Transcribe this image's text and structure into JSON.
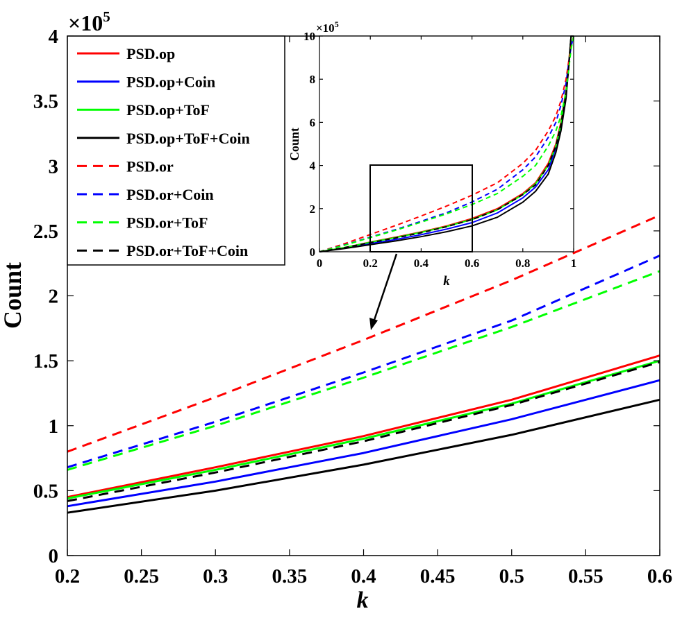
{
  "chart_data": [
    {
      "type": "line",
      "name": "main",
      "title": "",
      "xlabel": "k",
      "ylabel": "Count",
      "y_multiplier_label": "×10^5",
      "y_multiplier": {
        "base": "×10",
        "exp": "5"
      },
      "xlim": [
        0.2,
        0.6
      ],
      "ylim": [
        0,
        4
      ],
      "xticks": [
        0.2,
        0.25,
        0.3,
        0.35,
        0.4,
        0.45,
        0.5,
        0.55,
        0.6
      ],
      "xtick_labels": [
        "0.2",
        "0.25",
        "0.3",
        "0.35",
        "0.4",
        "0.45",
        "0.5",
        "0.55",
        "0.6"
      ],
      "yticks": [
        0,
        0.5,
        1,
        1.5,
        2,
        2.5,
        3,
        3.5,
        4
      ],
      "ytick_labels": [
        "0",
        "0.5",
        "1",
        "1.5",
        "2",
        "2.5",
        "3",
        "3.5",
        "4"
      ],
      "grid": false,
      "legend_position": "top-left",
      "x": [
        0.2,
        0.3,
        0.4,
        0.5,
        0.6
      ],
      "series": [
        {
          "name": "PSD.op",
          "color": "#ff0000",
          "style": "solid",
          "values": [
            0.45,
            0.68,
            0.92,
            1.2,
            1.54
          ]
        },
        {
          "name": "PSD.op+Coin",
          "color": "#0000ff",
          "style": "solid",
          "values": [
            0.38,
            0.57,
            0.79,
            1.05,
            1.35
          ]
        },
        {
          "name": "PSD.op+ToF",
          "color": "#00ff00",
          "style": "solid",
          "values": [
            0.44,
            0.66,
            0.9,
            1.17,
            1.5
          ]
        },
        {
          "name": "PSD.op+ToF+Coin",
          "color": "#000000",
          "style": "solid",
          "values": [
            0.33,
            0.5,
            0.7,
            0.93,
            1.2
          ]
        },
        {
          "name": "PSD.or",
          "color": "#ff0000",
          "style": "dashed",
          "values": [
            0.8,
            1.22,
            1.66,
            2.12,
            2.62
          ]
        },
        {
          "name": "PSD.or+Coin",
          "color": "#0000ff",
          "style": "dashed",
          "values": [
            0.68,
            1.03,
            1.41,
            1.81,
            2.31
          ]
        },
        {
          "name": "PSD.or+ToF",
          "color": "#00ff00",
          "style": "dashed",
          "values": [
            0.66,
            1.0,
            1.37,
            1.76,
            2.19
          ]
        },
        {
          "name": "PSD.or+ToF+Coin",
          "color": "#000000",
          "style": "dashed",
          "values": [
            0.42,
            0.64,
            0.88,
            1.16,
            1.49
          ]
        }
      ]
    },
    {
      "type": "line",
      "name": "inset",
      "title": "",
      "xlabel": "k",
      "ylabel": "Count",
      "y_multiplier_label": "×10^5",
      "y_multiplier": {
        "base": "×10",
        "exp": "5"
      },
      "xlim": [
        0,
        1
      ],
      "ylim": [
        0,
        10
      ],
      "xticks": [
        0,
        0.2,
        0.4,
        0.6,
        0.8,
        1
      ],
      "xtick_labels": [
        "0",
        "0.2",
        "0.4",
        "0.6",
        "0.8",
        "1"
      ],
      "yticks": [
        0,
        2,
        4,
        6,
        8,
        10
      ],
      "ytick_labels": [
        "0",
        "2",
        "4",
        "6",
        "8",
        "10"
      ],
      "grid": false,
      "zoom_box": {
        "xrange": [
          0.2,
          0.6
        ],
        "yrange": [
          0,
          4
        ]
      },
      "x": [
        0,
        0.1,
        0.2,
        0.3,
        0.4,
        0.5,
        0.6,
        0.7,
        0.8,
        0.85,
        0.9,
        0.93,
        0.95,
        0.97,
        0.98,
        0.99,
        1.0
      ],
      "series": [
        {
          "name": "PSD.op",
          "color": "#ff0000",
          "style": "solid",
          "values": [
            0,
            0.2,
            0.45,
            0.68,
            0.92,
            1.2,
            1.54,
            2.0,
            2.7,
            3.2,
            4.1,
            5.0,
            6.0,
            7.5,
            8.7,
            10,
            10
          ]
        },
        {
          "name": "PSD.op+Coin",
          "color": "#0000ff",
          "style": "solid",
          "values": [
            0,
            0.17,
            0.38,
            0.57,
            0.79,
            1.05,
            1.35,
            1.8,
            2.5,
            3.0,
            3.8,
            4.8,
            5.8,
            7.3,
            8.6,
            10,
            10
          ]
        },
        {
          "name": "PSD.op+ToF",
          "color": "#00ff00",
          "style": "solid",
          "values": [
            0,
            0.2,
            0.44,
            0.66,
            0.9,
            1.17,
            1.5,
            1.95,
            2.65,
            3.15,
            4.0,
            4.9,
            5.9,
            7.4,
            8.6,
            10,
            10
          ]
        },
        {
          "name": "PSD.op+ToF+Coin",
          "color": "#000000",
          "style": "solid",
          "values": [
            0,
            0.15,
            0.33,
            0.5,
            0.7,
            0.93,
            1.2,
            1.6,
            2.3,
            2.8,
            3.6,
            4.6,
            5.6,
            7.1,
            8.5,
            10,
            10
          ]
        },
        {
          "name": "PSD.or",
          "color": "#ff0000",
          "style": "dashed",
          "values": [
            0,
            0.38,
            0.8,
            1.22,
            1.66,
            2.12,
            2.62,
            3.2,
            4.1,
            4.7,
            5.6,
            6.3,
            7.0,
            8.0,
            8.8,
            9.5,
            10
          ]
        },
        {
          "name": "PSD.or+Coin",
          "color": "#0000ff",
          "style": "dashed",
          "values": [
            0,
            0.32,
            0.68,
            1.03,
            1.41,
            1.81,
            2.31,
            2.9,
            3.8,
            4.4,
            5.3,
            6.0,
            6.8,
            7.8,
            8.7,
            9.5,
            10
          ]
        },
        {
          "name": "PSD.or+ToF",
          "color": "#00ff00",
          "style": "dashed",
          "values": [
            0,
            0.31,
            0.66,
            1.0,
            1.37,
            1.76,
            2.19,
            2.7,
            3.5,
            4.0,
            4.9,
            5.6,
            6.3,
            7.4,
            8.4,
            9.4,
            10
          ]
        },
        {
          "name": "PSD.or+ToF+Coin",
          "color": "#000000",
          "style": "dashed",
          "values": [
            0,
            0.2,
            0.42,
            0.64,
            0.88,
            1.16,
            1.49,
            1.95,
            2.65,
            3.1,
            4.0,
            4.9,
            5.9,
            7.3,
            8.5,
            10,
            10
          ]
        }
      ]
    }
  ]
}
